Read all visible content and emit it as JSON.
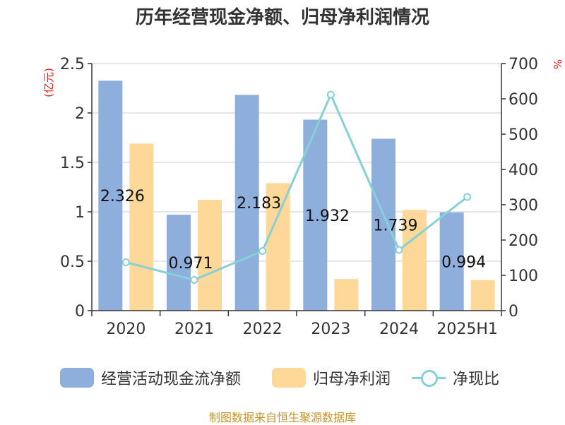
{
  "chart_data": {
    "type": "bar",
    "title": "历年经营现金净额、归母净利润情况",
    "categories": [
      "2020",
      "2021",
      "2022",
      "2023",
      "2024",
      "2025H1"
    ],
    "y_left_unit": "(亿元)",
    "y_right_unit": "%",
    "y_left_ticks": [
      "0",
      "0.5",
      "1",
      "1.5",
      "2",
      "2.5"
    ],
    "y_right_ticks": [
      "0",
      "100",
      "200",
      "300",
      "400",
      "500",
      "600",
      "700"
    ],
    "ylim_left": [
      0,
      2.5
    ],
    "ylim_right": [
      0,
      700
    ],
    "series": [
      {
        "name": "经营活动现金流净额",
        "type": "bar",
        "axis": "left",
        "color": "#8eaedb",
        "values": [
          2.326,
          0.971,
          2.183,
          1.932,
          1.739,
          0.994
        ],
        "labels": [
          "2.326",
          "0.971",
          "2.183",
          "1.932",
          "1.739",
          "0.994"
        ]
      },
      {
        "name": "归母净利润",
        "type": "bar",
        "axis": "left",
        "color": "#fdd899",
        "values": [
          1.69,
          1.12,
          1.29,
          0.32,
          1.02,
          0.31
        ]
      },
      {
        "name": "净现比",
        "type": "line",
        "axis": "right",
        "color": "#86d0d8",
        "values": [
          137,
          87,
          169,
          612,
          172,
          322
        ]
      }
    ],
    "grid": true,
    "legend": "bottom"
  },
  "colors": {
    "axis_unit": "#e02020",
    "text": "#333333",
    "grid": "#cccccc",
    "source": "#c8942a"
  },
  "source_note": "制图数据来自恒生聚源数据库"
}
